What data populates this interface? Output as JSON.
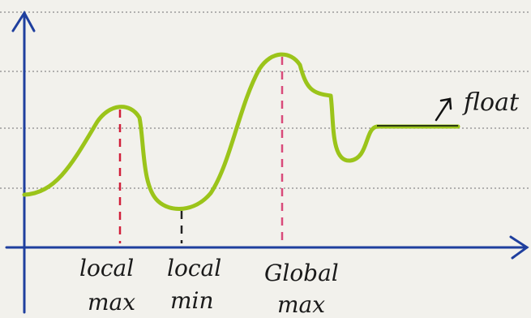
{
  "labels": [
    {
      "lines": [
        "local",
        "max"
      ]
    },
    {
      "lines": [
        "local",
        "min"
      ]
    },
    {
      "lines": [
        "Global",
        "max"
      ]
    }
  ],
  "annotation": "float"
}
